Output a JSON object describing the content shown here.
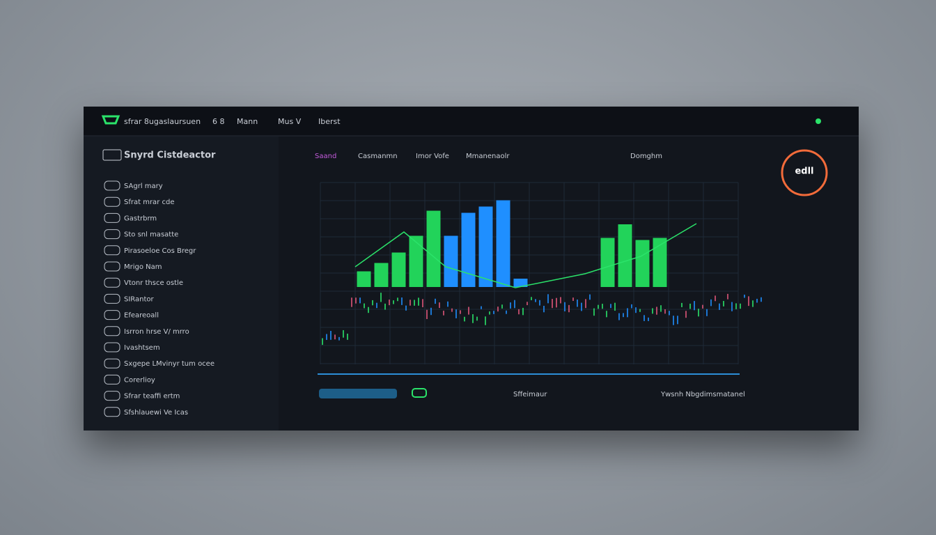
{
  "header": {
    "brand": "sfrar 8ugaslaursuen",
    "nav": [
      "6 8",
      "Mann",
      "Mus V",
      "Iberst"
    ]
  },
  "sidebar": {
    "title": "Snyrd Cistdeactor",
    "items": [
      "SAgrl mary",
      "Sfrat mrar cde",
      "Gastrbrm",
      "Sto snl masatte",
      "Pirasoeloe Cos Bregr",
      "Mrigo Nam",
      "Vtonr thsce ostle",
      "SIRantor",
      "Efeareoall",
      "Isrron hrse V/ mrro",
      "Ivashtsem",
      "Sxgepe LMvinyr tum ocee",
      "Corerlioy",
      "Sfrar teaffi ertm",
      "Sfshlauewi Ve Icas"
    ]
  },
  "tabs": [
    "Saand",
    "Casmanmn",
    "Imor Vofe",
    "Mmanenaolr",
    "Domghm"
  ],
  "badge": "edll",
  "footer": {
    "left": "Sffeimaur",
    "right": "Ywsnh Nbgdimsmatanel"
  },
  "chart_data": {
    "type": "bar",
    "ylim": [
      0,
      100
    ],
    "series": [
      {
        "color": "#22d35a",
        "values": [
          null,
          null,
          15,
          23,
          33,
          49,
          73,
          null,
          null,
          null,
          null,
          null,
          null,
          null,
          null,
          null,
          47,
          60,
          45,
          47,
          null,
          null,
          null,
          null
        ]
      },
      {
        "color": "#1f8fff",
        "values": [
          null,
          null,
          null,
          null,
          null,
          null,
          null,
          49,
          71,
          77,
          83,
          8,
          null,
          null,
          null,
          null,
          null,
          null,
          null,
          null,
          null,
          null,
          null,
          null
        ]
      }
    ]
  }
}
